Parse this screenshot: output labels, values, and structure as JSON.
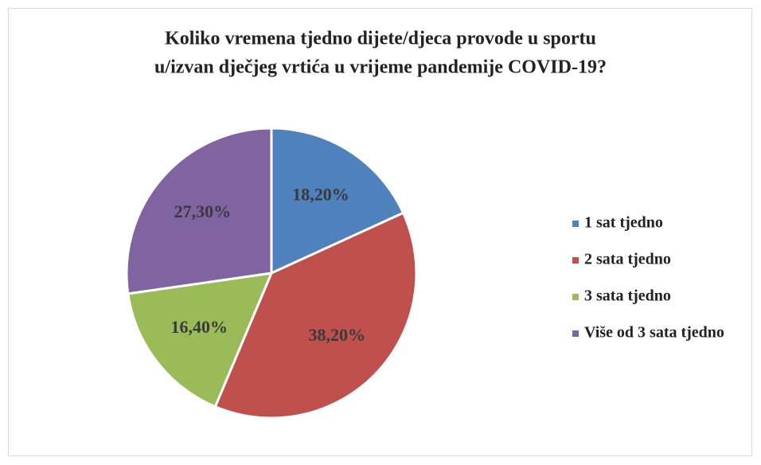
{
  "chart_data": {
    "type": "pie",
    "title": [
      "Koliko vremena tjedno dijete/djeca provode u sportu",
      "u/izvan dječjeg vrtića u vrijeme pandemije COVID-19?"
    ],
    "categories": [
      "1 sat tjedno",
      "2 sata tjedno",
      "3 sata tjedno",
      "Više od 3 sata tjedno"
    ],
    "values": [
      18.2,
      38.2,
      16.4,
      27.3
    ],
    "value_labels": [
      "18,20%",
      "38,20%",
      "16,40%",
      "27,30%"
    ],
    "colors": [
      "#4f81bd",
      "#c0504d",
      "#9bbb59",
      "#8064a2"
    ],
    "legend": "right"
  }
}
